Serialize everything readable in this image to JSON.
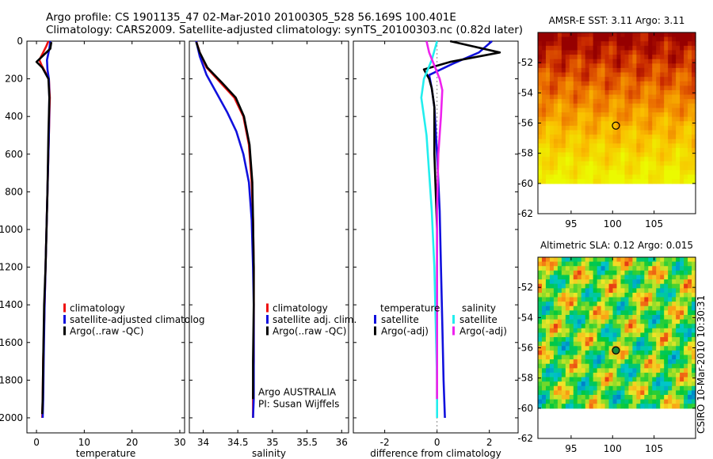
{
  "title": {
    "line1": "Argo profile: CS 1901135_47 02-Mar-2010 20100305_528 56.169S 100.401E",
    "line2": "Climatology: CARS2009. Satellite-adjusted climatology: synTS_20100303.nc (0.82d later)"
  },
  "side_text": "CSIRO 10-Mar-2010 10:30:31",
  "colors": {
    "red": "#ee1111",
    "blue": "#1111dd",
    "black": "#000000",
    "cyan": "#22eeee",
    "magenta": "#ee22ee"
  },
  "depth_axis": {
    "ylim": [
      0,
      2080
    ],
    "ticks": [
      0,
      200,
      400,
      600,
      800,
      1000,
      1200,
      1400,
      1600,
      1800,
      2000
    ],
    "tick_labels": [
      "0",
      "200",
      "400",
      "600",
      "800",
      "1000",
      "1200",
      "1400",
      "1600",
      "1800",
      "2000"
    ]
  },
  "chart_data": [
    {
      "type": "line",
      "xlabel": "temperature",
      "ylabel": "",
      "xlim": [
        -2,
        31
      ],
      "xticks": [
        0,
        10,
        20,
        30
      ],
      "xtick_labels": [
        "0",
        "10",
        "20",
        "30"
      ],
      "y_reversed": true,
      "legend": [
        "climatology",
        "satellite-adjusted climatolog",
        "Argo(..raw -QC)"
      ],
      "series": [
        {
          "name": "climatology",
          "color": "red",
          "x": [
            2.5,
            2.0,
            0.6,
            1.1,
            2.6,
            2.8,
            2.6,
            2.3,
            2.1,
            1.9,
            1.7,
            1.4,
            1.3,
            1.2
          ],
          "y": [
            0,
            30,
            100,
            130,
            200,
            300,
            500,
            800,
            1000,
            1200,
            1400,
            1700,
            1900,
            2000
          ]
        },
        {
          "name": "satellite-adjusted climatology",
          "color": "blue",
          "x": [
            2.9,
            2.7,
            2.2,
            2.3,
            2.6,
            2.7,
            2.6,
            2.3,
            2.1,
            1.9,
            1.7,
            1.5,
            1.4,
            1.3
          ],
          "y": [
            0,
            40,
            100,
            150,
            200,
            300,
            500,
            800,
            1000,
            1200,
            1400,
            1700,
            1900,
            2000
          ]
        },
        {
          "name": "Argo(..raw -QC)",
          "color": "black",
          "x": [
            3.1,
            2.9,
            0.0,
            1.2,
            2.5,
            2.7,
            2.5,
            2.3,
            2.1,
            1.9,
            1.6,
            1.4,
            1.3,
            1.2
          ],
          "y": [
            5,
            40,
            110,
            140,
            200,
            300,
            500,
            800,
            1000,
            1200,
            1400,
            1700,
            1900,
            1980
          ]
        }
      ]
    },
    {
      "type": "line",
      "xlabel": "salinity",
      "ylabel": "",
      "xlim": [
        33.8,
        36.1
      ],
      "xticks": [
        34,
        34.5,
        35,
        35.5,
        36
      ],
      "xtick_labels": [
        "34",
        "34.5",
        "35",
        "35.5",
        "36"
      ],
      "y_reversed": true,
      "legend": [
        "climatology",
        "satellite adj. clim.",
        "Argo(..raw -QC)"
      ],
      "annotation": [
        "Argo AUSTRALIA",
        "PI: Susan Wijffels"
      ],
      "series": [
        {
          "name": "climatology",
          "color": "red",
          "x": [
            33.9,
            33.95,
            34.05,
            34.25,
            34.45,
            34.58,
            34.66,
            34.7,
            34.72,
            34.73,
            34.73,
            34.73,
            34.72,
            34.72
          ],
          "y": [
            0,
            60,
            140,
            220,
            300,
            400,
            550,
            750,
            950,
            1200,
            1400,
            1700,
            1900,
            2000
          ]
        },
        {
          "name": "satellite adj. clim.",
          "color": "blue",
          "x": [
            33.9,
            33.95,
            34.05,
            34.2,
            34.35,
            34.48,
            34.58,
            34.66,
            34.7,
            34.72,
            34.73,
            34.73,
            34.73,
            34.72
          ],
          "y": [
            0,
            80,
            180,
            280,
            380,
            480,
            600,
            750,
            950,
            1200,
            1400,
            1700,
            1900,
            2000
          ]
        },
        {
          "name": "Argo(..raw -QC)",
          "color": "black",
          "x": [
            33.9,
            33.95,
            34.06,
            34.27,
            34.47,
            34.59,
            34.67,
            34.71,
            34.72,
            34.73,
            34.73,
            34.72,
            34.72
          ],
          "y": [
            5,
            60,
            140,
            220,
            300,
            400,
            550,
            750,
            950,
            1200,
            1400,
            1700,
            1900
          ]
        }
      ]
    },
    {
      "type": "line",
      "xlabel": "difference from climatology",
      "ylabel": "",
      "xlim": [
        -3.2,
        3.1
      ],
      "xticks": [
        -2,
        0,
        2
      ],
      "xtick_labels": [
        "-2",
        "0",
        "2"
      ],
      "y_reversed": true,
      "legend_groups": [
        {
          "heading": "temperature",
          "items": [
            {
              "label": "satellite",
              "color": "blue"
            },
            {
              "label": "Argo(-adj)",
              "color": "black"
            }
          ]
        },
        {
          "heading": "salinity",
          "items": [
            {
              "label": "satellite",
              "color": "cyan"
            },
            {
              "label": "Argo(-adj)",
              "color": "magenta"
            }
          ]
        }
      ],
      "series": [
        {
          "name": "temperature satellite",
          "color": "blue",
          "x": [
            2.1,
            1.6,
            0.6,
            -0.3,
            -0.2,
            -0.1,
            0.0,
            0.1,
            0.15,
            0.2,
            0.25,
            0.3
          ],
          "y": [
            0,
            60,
            120,
            180,
            250,
            350,
            600,
            900,
            1200,
            1500,
            1800,
            2000
          ]
        },
        {
          "name": "temperature Argo(-adj)",
          "color": "black",
          "x": [
            0.5,
            2.4,
            0.5,
            -0.5,
            -0.3,
            -0.2,
            -0.1,
            -0.1,
            0.0,
            0.0,
            0.0,
            0.0
          ],
          "y": [
            0,
            60,
            110,
            150,
            200,
            250,
            350,
            600,
            1000,
            1400,
            1700,
            1900
          ]
        },
        {
          "name": "salinity satellite",
          "color": "cyan",
          "x": [
            0.0,
            -0.2,
            -0.5,
            -0.6,
            -0.5,
            -0.4,
            -0.3,
            -0.2,
            -0.1,
            -0.05,
            0.0,
            0.0
          ],
          "y": [
            0,
            100,
            200,
            300,
            400,
            500,
            700,
            900,
            1200,
            1500,
            1800,
            2000
          ]
        },
        {
          "name": "salinity Argo(-adj)",
          "color": "magenta",
          "x": [
            -0.4,
            -0.3,
            -0.1,
            0.1,
            0.2,
            0.15,
            0.05,
            0.0,
            0.0,
            0.0,
            0.0
          ],
          "y": [
            0,
            60,
            130,
            200,
            260,
            400,
            600,
            900,
            1300,
            1600,
            1900
          ]
        }
      ]
    },
    {
      "type": "heatmap",
      "title": "AMSR-E SST: 3.11 Argo: 3.11",
      "xlim": [
        91,
        110
      ],
      "xticks": [
        95,
        100,
        105
      ],
      "xtick_labels": [
        "95",
        "100",
        "105"
      ],
      "ylim": [
        -62,
        -50
      ],
      "yticks": [
        -52,
        -54,
        -56,
        -58,
        -60,
        -62
      ],
      "ytick_labels": [
        "-52",
        "-54",
        "-56",
        "-58",
        "-60",
        "-62"
      ],
      "data_ylim": [
        -60,
        -50
      ],
      "colormap": "warm",
      "value_range": [
        0,
        1
      ],
      "marker": {
        "lon": 100.4,
        "lat": -56.17
      }
    },
    {
      "type": "heatmap",
      "title": "Altimetric SLA: 0.12 Argo: 0.015",
      "xlim": [
        91,
        110
      ],
      "xticks": [
        95,
        100,
        105
      ],
      "xtick_labels": [
        "95",
        "100",
        "105"
      ],
      "ylim": [
        -62,
        -50
      ],
      "yticks": [
        -52,
        -54,
        -56,
        -58,
        -60,
        -62
      ],
      "ytick_labels": [
        "-52",
        "-54",
        "-56",
        "-58",
        "-60",
        "-62"
      ],
      "data_ylim": [
        -60,
        -50
      ],
      "colormap": "jet",
      "value_range": [
        -1,
        1
      ],
      "marker": {
        "lon": 100.4,
        "lat": -56.17
      }
    }
  ]
}
